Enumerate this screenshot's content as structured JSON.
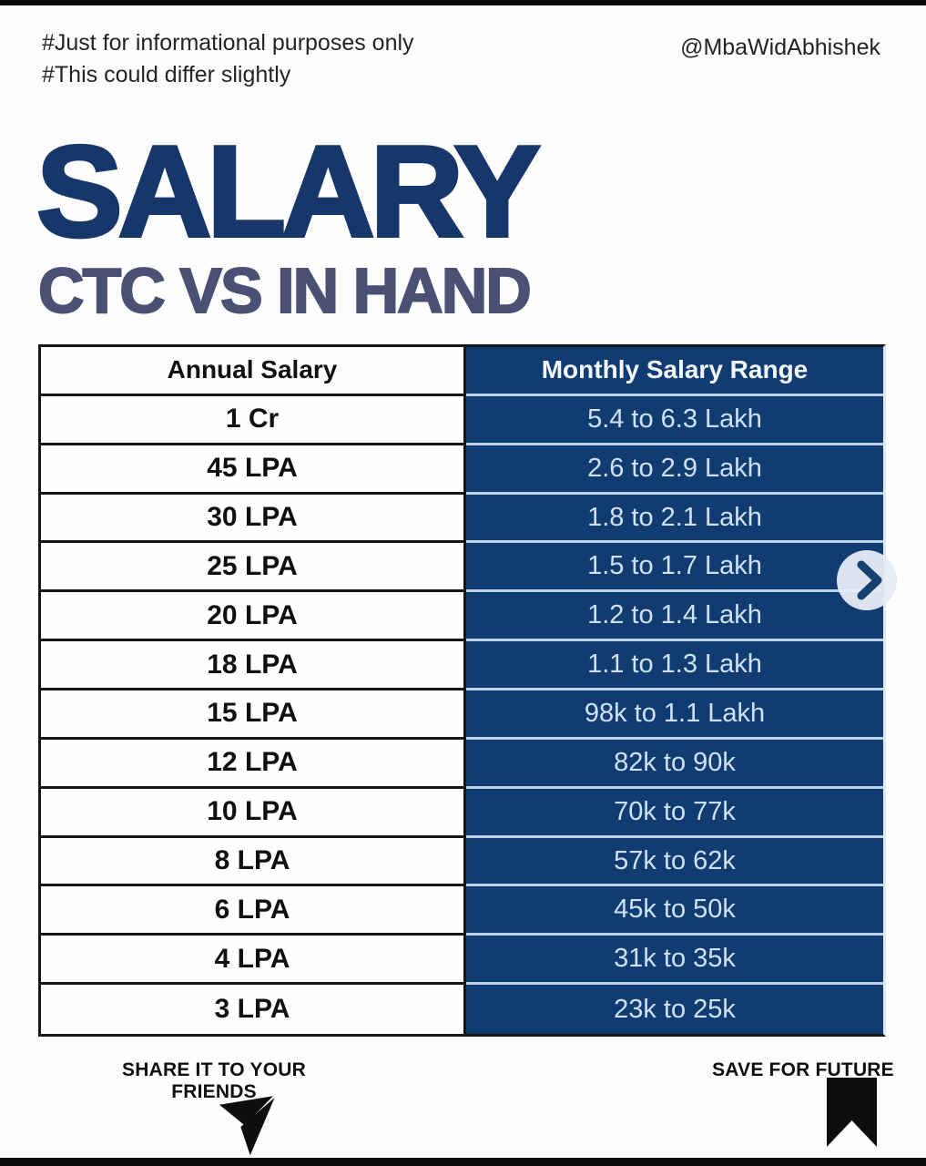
{
  "header": {
    "hashtag_line1": "#Just for informational purposes only",
    "hashtag_line2": "#This could differ slightly",
    "handle": "@MbaWidAbhishek"
  },
  "chart_data": {
    "type": "table",
    "title": "SALARY",
    "subtitle": "CTC VS IN HAND",
    "columns": [
      "Annual Salary",
      "Monthly Salary Range"
    ],
    "rows": [
      [
        "1 Cr",
        "5.4 to 6.3 Lakh"
      ],
      [
        "45 LPA",
        "2.6 to 2.9 Lakh"
      ],
      [
        "30 LPA",
        "1.8 to 2.1 Lakh"
      ],
      [
        "25 LPA",
        "1.5 to 1.7 Lakh"
      ],
      [
        "20 LPA",
        "1.2 to 1.4 Lakh"
      ],
      [
        "18 LPA",
        "1.1 to 1.3 Lakh"
      ],
      [
        "15 LPA",
        "98k to 1.1 Lakh"
      ],
      [
        "12 LPA",
        "82k to 90k"
      ],
      [
        "10 LPA",
        "70k to 77k"
      ],
      [
        "8 LPA",
        "57k to 62k"
      ],
      [
        "6 LPA",
        "45k to 50k"
      ],
      [
        "4 LPA",
        "31k to 35k"
      ],
      [
        "3 LPA",
        "23k to 25k"
      ]
    ],
    "layout_hints": {
      "annual_column_style": "white background, black bold text, black borders",
      "monthly_column_style": "navy background, light blue text, light blue separators"
    }
  },
  "footer": {
    "share_label": "SHARE IT TO YOUR FRIENDS",
    "save_label": "SAVE FOR FUTURE"
  },
  "icons": {
    "next": "chevron-right-icon",
    "share": "paper-plane-icon",
    "save": "bookmark-icon"
  },
  "colors": {
    "navy": "#113c72",
    "navy_header_text": "#f4f8fd",
    "cell_text": "#cfe1f3",
    "border_dark": "#161616",
    "separator_light": "#b9d2ea",
    "title_color": "#17376b",
    "subtitle_color": "#4a5175",
    "bar_black": "#0b0b0b",
    "chevron_bg": "#e6ecf4",
    "chevron_fg": "#16406f"
  }
}
